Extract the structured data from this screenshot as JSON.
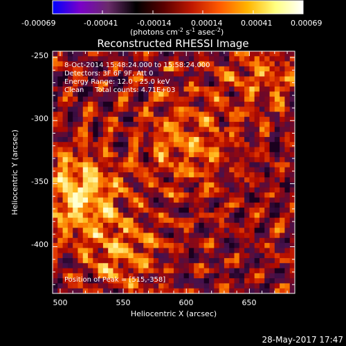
{
  "colorbar": {
    "tick_labels": [
      "-0.00069",
      "-0.00041",
      "-0.00014",
      "0.00014",
      "0.00041",
      "0.00069"
    ],
    "unit_prefix": "(photons cm",
    "unit_exp1": "-2",
    "unit_mid": " s",
    "unit_exp2": "-1",
    "unit_mid2": " asec",
    "unit_exp3": "-2",
    "unit_suffix": ")",
    "colormap_stops": [
      "#0000ff",
      "#7a00c8",
      "#6a2b6a",
      "#000000",
      "#5a0000",
      "#c01800",
      "#ff5a00",
      "#ffb400",
      "#ffff80",
      "#ffffff"
    ]
  },
  "chart_data": {
    "type": "heatmap",
    "title": "Reconstructed RHESSI Image",
    "xlabel": "Heliocentric X (arcsec)",
    "ylabel": "Heliocentric Y (arcsec)",
    "xlim": [
      494,
      686
    ],
    "ylim": [
      -437,
      -245
    ],
    "x_ticks": [
      "500",
      "550",
      "600",
      "650"
    ],
    "y_ticks": [
      "-250",
      "-300",
      "-350",
      "-400"
    ],
    "peak": [
      515,
      -358
    ],
    "annotations": [
      "8-Oct-2014 15:48:24.000 to 15:58:24.000",
      "Detectors: 3F 6F 9F, Att 0",
      "Energy Range: 12.0 - 25.0 keV",
      "Clean     Total counts: 4.71E+03"
    ],
    "peak_label": "Position of Peak = [515,-358]"
  },
  "footer": {
    "date": "28-May-2017 17:47"
  }
}
